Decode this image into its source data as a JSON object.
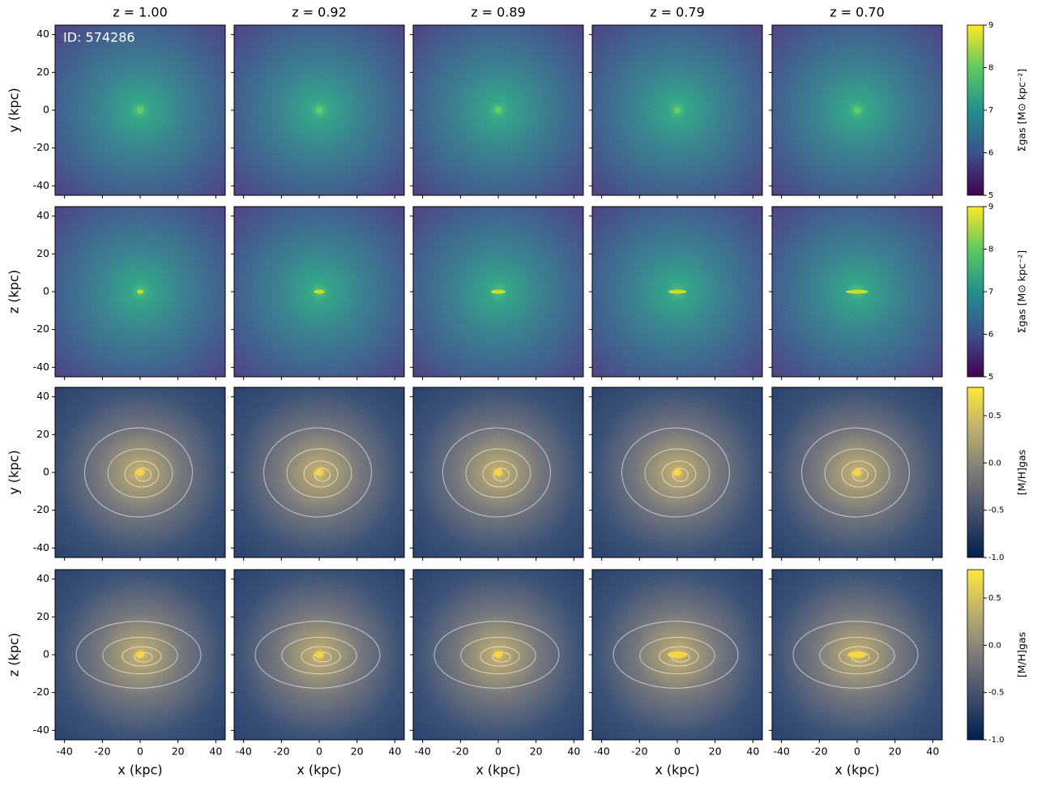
{
  "chart_data": {
    "type": "heatmap",
    "id_label": "ID: 574286",
    "columns": [
      "z = 1.00",
      "z = 0.92",
      "z = 0.89",
      "z = 0.79",
      "z = 0.70"
    ],
    "xlabel": "x (kpc)",
    "xlim": [
      -45,
      45
    ],
    "xticks": [
      -40,
      -20,
      0,
      20,
      40
    ],
    "ylim": [
      -45,
      45
    ],
    "yticks": [
      -40,
      -20,
      0,
      20,
      40
    ],
    "rows": [
      {
        "ylabel": "y (kpc)",
        "colormap": "viridis",
        "colorbar": {
          "label": "Σgas [M⊙ kpc⁻²]",
          "lim": [
            5,
            9
          ],
          "ticks": [
            5,
            6,
            7,
            8,
            9
          ]
        }
      },
      {
        "ylabel": "z (kpc)",
        "colormap": "viridis",
        "colorbar": {
          "label": "Σgas [M⊙ kpc⁻²]",
          "lim": [
            5,
            9
          ],
          "ticks": [
            5,
            6,
            7,
            8,
            9
          ]
        }
      },
      {
        "ylabel": "y (kpc)",
        "colormap": "cividis",
        "colorbar": {
          "label": "[M/H]gas",
          "lim": [
            -1.0,
            0.8
          ],
          "ticks": [
            {
              "value": -1,
              "label": "-1.0"
            },
            -0.5,
            {
              "value": 0,
              "label": "0.0"
            },
            0.5
          ]
        }
      },
      {
        "ylabel": "z (kpc)",
        "colormap": "cividis",
        "colorbar": {
          "label": "[M/H]gas",
          "lim": [
            -1.0,
            0.8
          ],
          "ticks": [
            {
              "value": -1,
              "label": "-1.0"
            },
            -0.5,
            {
              "value": 0,
              "label": "0.0"
            },
            0.5
          ]
        }
      }
    ]
  }
}
